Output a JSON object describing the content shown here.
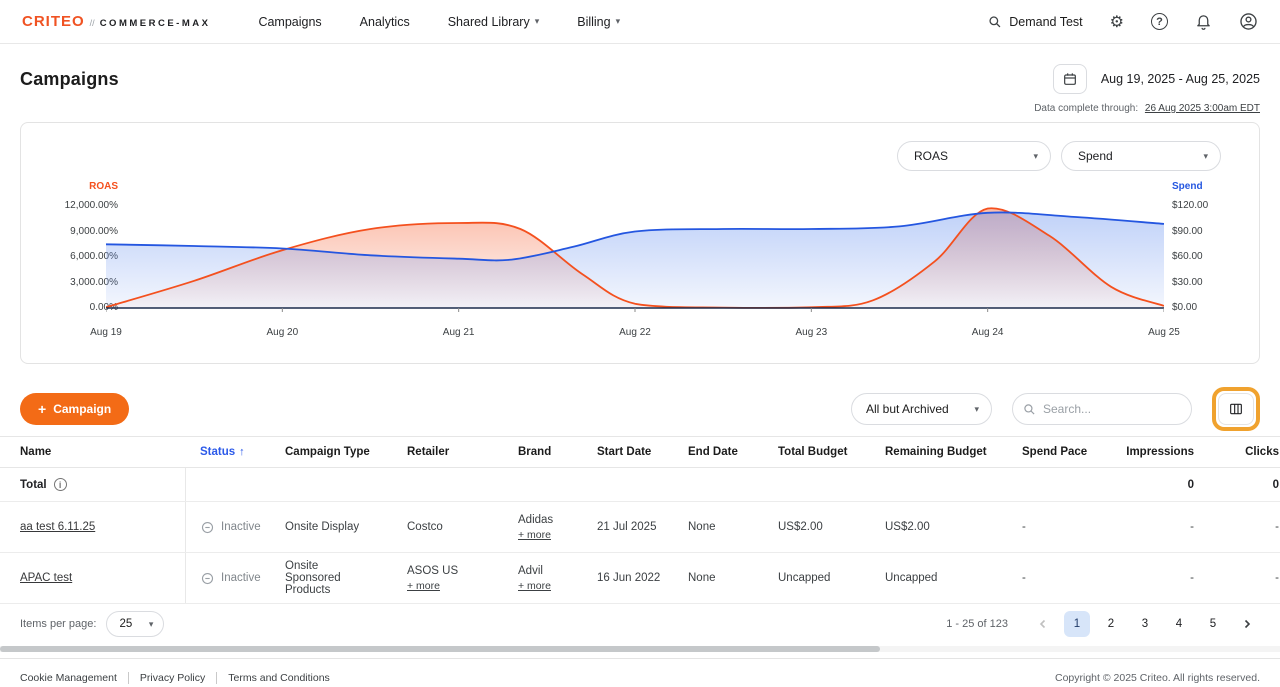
{
  "icons": {
    "plus": "+",
    "caret_down": "▾",
    "sort_asc": "↑",
    "gear": "⚙",
    "help": "?",
    "info": "i",
    "logo_divider": "//"
  },
  "topnav": {
    "logo": "CRITEO",
    "product": "COMMERCE-MAX",
    "items": [
      {
        "label": "Campaigns"
      },
      {
        "label": "Analytics"
      },
      {
        "label": "Shared Library"
      },
      {
        "label": "Billing"
      }
    ],
    "account_search": "Demand Test"
  },
  "page": {
    "title": "Campaigns",
    "date_range": "Aug 19, 2025 - Aug 25, 2025",
    "data_complete_label": "Data complete through:",
    "data_complete_link": "26 Aug 2025 3:00am EDT"
  },
  "chart_controls": {
    "metric_left": "ROAS",
    "metric_right": "Spend"
  },
  "chart_data": {
    "type": "area",
    "x_labels": [
      "Aug 19",
      "Aug 20",
      "Aug 21",
      "Aug 22",
      "Aug 23",
      "Aug 24",
      "Aug 25"
    ],
    "grid": false,
    "legend": "none",
    "left_axis": {
      "label": "ROAS",
      "color": "#f4501e",
      "min": 0,
      "max": 12000,
      "ticks": [
        "12,000.00%",
        "9,000.00%",
        "6,000.00%",
        "3,000.00%",
        "0.00%"
      ]
    },
    "right_axis": {
      "label": "Spend",
      "color": "#2456e0",
      "min": 0,
      "max": 120,
      "ticks": [
        "$120.00",
        "$90.00",
        "$60.00",
        "$30.00",
        "$0.00"
      ]
    },
    "series": [
      {
        "name": "ROAS",
        "axis": "left",
        "color": "#f4501e",
        "x": [
          0,
          0.5,
          1,
          1.5,
          2,
          2.35,
          2.7,
          3,
          3.5,
          4,
          4.35,
          4.7,
          5,
          5.35,
          5.7,
          6
        ],
        "values": [
          100,
          3200,
          6800,
          9300,
          10000,
          9300,
          4000,
          500,
          50,
          80,
          900,
          5500,
          11700,
          8500,
          2500,
          250
        ]
      },
      {
        "name": "Spend",
        "axis": "right",
        "color": "#2456e0",
        "x": [
          0,
          0.5,
          1,
          1.5,
          2,
          2.3,
          2.65,
          3,
          3.5,
          4,
          4.5,
          5,
          5.5,
          6
        ],
        "values": [
          75,
          73,
          70,
          62,
          58,
          57,
          72,
          90,
          93,
          93,
          96,
          112,
          107,
          99
        ]
      }
    ]
  },
  "toolbar": {
    "new_campaign": "Campaign",
    "status_filter": "All but Archived",
    "search_placeholder": "Search..."
  },
  "table": {
    "columns": [
      "Name",
      "Status",
      "Campaign Type",
      "Retailer",
      "Brand",
      "Start Date",
      "End Date",
      "Total Budget",
      "Remaining Budget",
      "Spend Pace",
      "Impressions",
      "Clicks"
    ],
    "total": {
      "label": "Total",
      "impressions": "0",
      "clicks": "0"
    },
    "rows": [
      {
        "name": "aa test 6.11.25",
        "status": "Inactive",
        "campaign_type": "Onsite Display",
        "retailer": "Costco",
        "retailer_more": "",
        "brand": "Adidas",
        "brand_more": "+ more",
        "start_date": "21 Jul 2025",
        "end_date": "None",
        "total_budget": "US$2.00",
        "remaining_budget": "US$2.00",
        "spend_pace": "-",
        "impressions": "-",
        "clicks": "-"
      },
      {
        "name": "APAC test",
        "status": "Inactive",
        "campaign_type": "Onsite Sponsored Products",
        "retailer": "ASOS US",
        "retailer_more": "+ more",
        "brand": "Advil",
        "brand_more": "+ more",
        "start_date": "16 Jun 2022",
        "end_date": "None",
        "total_budget": "Uncapped",
        "remaining_budget": "Uncapped",
        "spend_pace": "-",
        "impressions": "-",
        "clicks": "-"
      }
    ]
  },
  "pagination": {
    "items_per_page_label": "Items per page:",
    "items_per_page": "25",
    "range": "1 - 25 of 123",
    "pages": [
      "1",
      "2",
      "3",
      "4",
      "5"
    ],
    "active_page": "1"
  },
  "footer": {
    "links": [
      "Cookie Management",
      "Privacy Policy",
      "Terms and Conditions"
    ],
    "copyright": "Copyright © 2025 Criteo. All rights reserved."
  }
}
